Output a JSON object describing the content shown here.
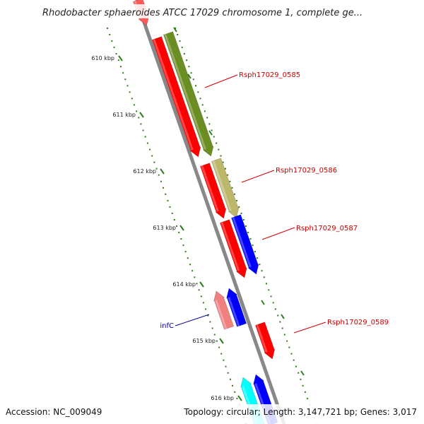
{
  "title": "Rhodobacter sphaeroides ATCC 17029 chromosome 1, complete ge...",
  "ruler": {
    "unit_suffix": "kbp",
    "ticks": [
      {
        "label": "610 kbp",
        "value": 610
      },
      {
        "label": "611 kbp",
        "value": 611
      },
      {
        "label": "612 kbp",
        "value": 612
      },
      {
        "label": "613 kbp",
        "value": 613
      },
      {
        "label": "614 kbp",
        "value": 614
      },
      {
        "label": "615 kbp",
        "value": 615
      },
      {
        "label": "616 kbp",
        "value": 616
      }
    ]
  },
  "colors": {
    "backbone": "#888888",
    "tick_dots": "#2e7d1e",
    "label_red": "#cc0000",
    "label_blue": "#00009a"
  },
  "genes": [
    {
      "id": "g0",
      "name": "",
      "color": "#ff5a5a"
    },
    {
      "id": "g1",
      "name": "",
      "color": "#ff0000"
    },
    {
      "id": "g2",
      "name": "Rsph17029_0585",
      "color": "#6b8e23"
    },
    {
      "id": "g3",
      "name": "",
      "color": "#ff0000"
    },
    {
      "id": "g4",
      "name": "Rsph17029_0586",
      "color": "#bdb76b"
    },
    {
      "id": "g5",
      "name": "",
      "color": "#ff0000"
    },
    {
      "id": "g6",
      "name": "Rsph17029_0587",
      "color": "#0000ff"
    },
    {
      "id": "g7",
      "name": "infC",
      "color": "#f08080"
    },
    {
      "id": "g8",
      "name": "",
      "color": "#0000ff"
    },
    {
      "id": "g9",
      "name": "Rsph17029_0589",
      "color": "#ff0000"
    },
    {
      "id": "g10",
      "name": "",
      "color": "#00ffff"
    },
    {
      "id": "g11",
      "name": "",
      "color": "#0000ff"
    }
  ],
  "footer": {
    "accession": "Accession: NC_009049",
    "stats": "Topology: circular; Length: 3,147,721 bp; Genes: 3,017"
  }
}
